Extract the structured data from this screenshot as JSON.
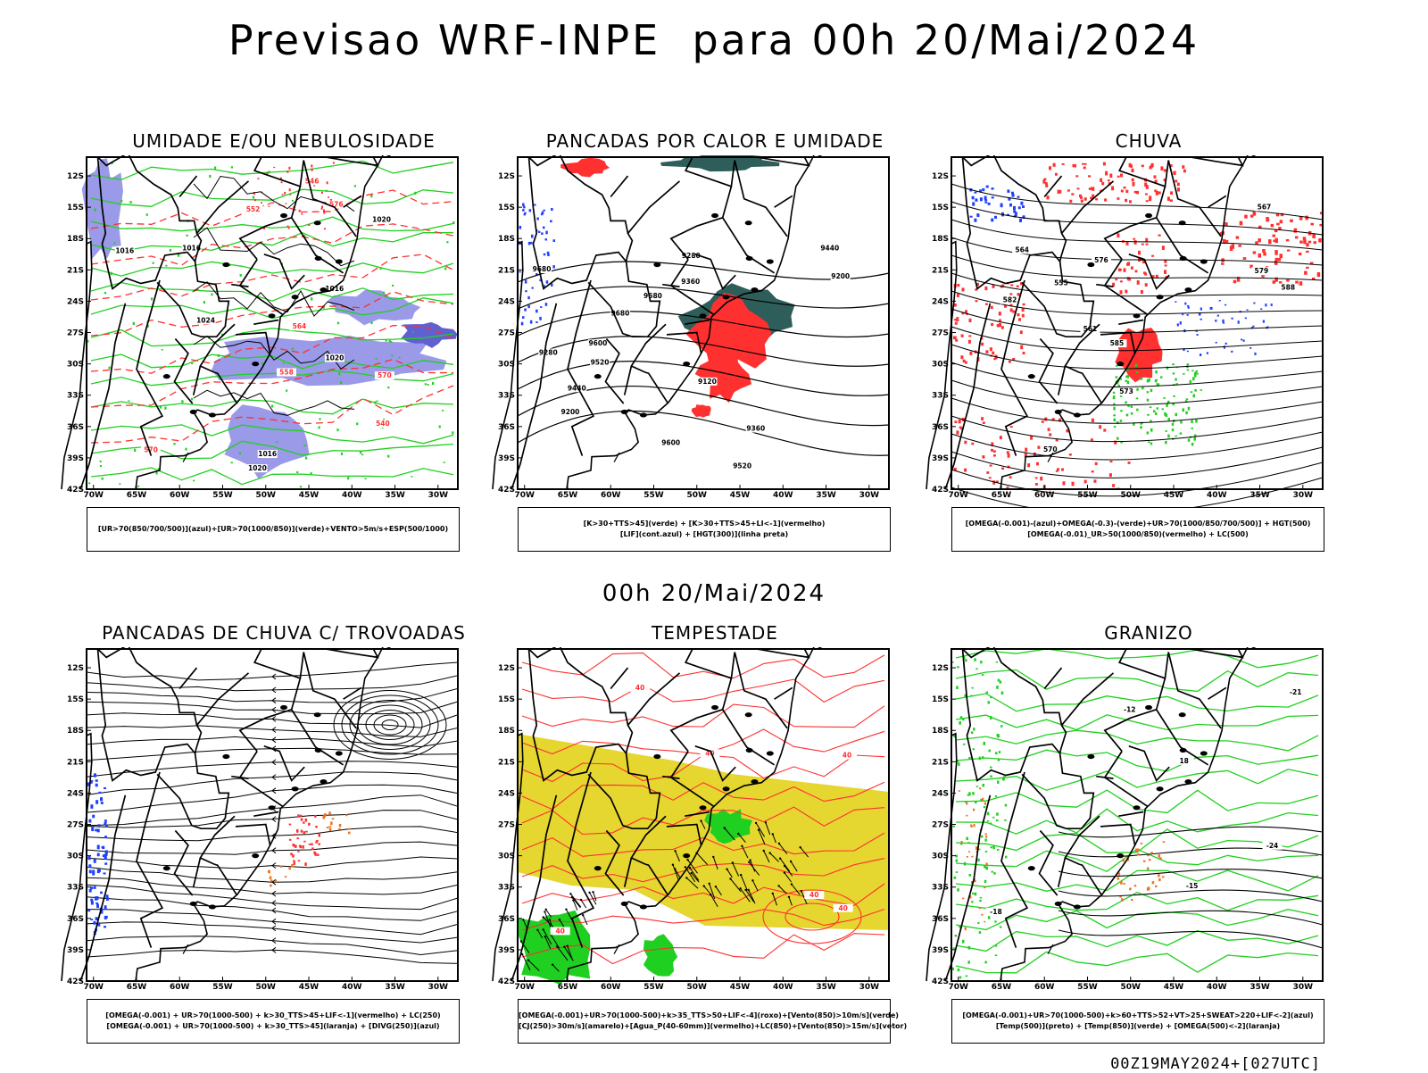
{
  "header": {
    "title": "Previsao WRF-INPE  para 00h 20/Mai/2024",
    "subtitle": "00h 20/Mai/2024",
    "footer": "00Z19MAY2024+[027UTC]"
  },
  "axes": {
    "lat_labels": [
      "12S",
      "15S",
      "18S",
      "21S",
      "24S",
      "27S",
      "30S",
      "33S",
      "36S",
      "39S",
      "42S"
    ],
    "lon_labels": [
      "70W",
      "65W",
      "60W",
      "55W",
      "50W",
      "45W",
      "40W",
      "35W",
      "30W"
    ]
  },
  "panels": [
    {
      "id": "umidade",
      "title": "UMIDADE E/OU NEBULOSIDADE",
      "legend": [
        "[UR>70(850/700/500)](azul)+[UR>70(1000/850)](verde)+VENTO>5m/s+ESP(500/1000)"
      ],
      "labels": [
        "1016",
        "1016",
        "1016",
        "1016",
        "1020",
        "1020",
        "1020",
        "1024",
        "570",
        "570",
        "564",
        "558",
        "552",
        "546",
        "540",
        "576"
      ]
    },
    {
      "id": "pancadas-calor",
      "title": "PANCADAS POR CALOR E UMIDADE",
      "legend": [
        "[K>30+TTS>45](verde) + [K>30+TTS>45+LI<-1](vermelho)",
        "[LIF](cont.azul) + [HGT(300)](linha preta)"
      ],
      "labels": [
        "9680",
        "9680",
        "9600",
        "9520",
        "9440",
        "9360",
        "9280",
        "9200",
        "9120",
        "9600",
        "9520",
        "9440",
        "9360",
        "9280",
        "9200",
        "9680"
      ]
    },
    {
      "id": "chuva",
      "title": "CHUVA",
      "legend": [
        "[OMEGA(-0.001)-(azul)+OMEGA(-0.3)-(verde)+UR>70(1000/850/700/500)] + HGT(500)",
        "[OMEGA(-0.01)_UR>50(1000/850)(vermelho) + LC(500)"
      ],
      "labels": [
        "588",
        "585",
        "582",
        "579",
        "576",
        "573",
        "570",
        "567",
        "564",
        "561",
        "555"
      ]
    },
    {
      "id": "pancadas-trovoadas",
      "title": "PANCADAS DE CHUVA C/ TROVOADAS",
      "legend": [
        "[OMEGA(-0.001) + UR>70(1000-500) + k>30_TTS>45+LIF<-1](vermelho) + LC(250)",
        "[OMEGA(-0.001) + UR>70(1000-500) + k>30_TTS>45](laranja) + [DIVG(250)](azul)"
      ],
      "labels": []
    },
    {
      "id": "tempestade",
      "title": "TEMPESTADE",
      "legend": [
        "[OMEGA(-0.001)+UR>70(1000-500)+k>35_TTS>50+LIF<-4](roxo)+[Vento(850)>10m/s](verde)",
        "[CJ(250)>30m/s](amarelo)+[Agua_P(40-60mm)](vermelho)+LC(850)+[Vento(850)>15m/s](vetor)"
      ],
      "labels": [
        "40",
        "40",
        "40",
        "40",
        "40",
        "40"
      ]
    },
    {
      "id": "granizo",
      "title": "GRANIZO",
      "legend": [
        "[OMEGA(-0.001)+UR>70(1000-500)+k>60+TTS>52+VT>25+SWEAT>220+LIF<-2](azul)",
        "[Temp(500)](preto) + [Temp(850)](verde) + [OMEGA(500)<-2](laranja)"
      ],
      "labels": [
        "-12",
        "-15",
        "-18",
        "-21",
        "-24",
        "18"
      ]
    }
  ],
  "colors": {
    "red": "#ff3030",
    "green": "#20d020",
    "blue": "#2040ff",
    "lavender": "#9a9ae8",
    "teal": "#2e5e5a",
    "yellow": "#e6d630",
    "orange": "#f07020",
    "black": "#000000"
  }
}
